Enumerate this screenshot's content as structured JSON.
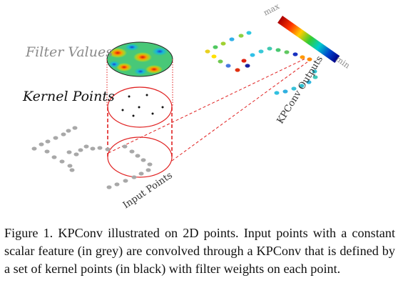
{
  "labels": {
    "filter_values": "Filter Values",
    "kernel_points": "Kernel Points",
    "input_points": "Input Points",
    "outputs": "KPConv Outputs",
    "colorbar_max": "max",
    "colorbar_min": "min"
  },
  "caption": "Figure 1. KPConv illustrated on 2D points. Input points with a constant scalar feature (in grey) are convolved through a KPConv that is defined by a set of kernel points (in black) with filter weights on each point.",
  "colors": {
    "input_points": "#a8a8a8",
    "kernel_points": "#111111",
    "circles": "#e02020",
    "label_grey": "#8a8a8a",
    "colormap": [
      "#aa0000",
      "#ff3300",
      "#ffcc00",
      "#33cc33",
      "#00cccc",
      "#0044cc",
      "#000088"
    ]
  }
}
